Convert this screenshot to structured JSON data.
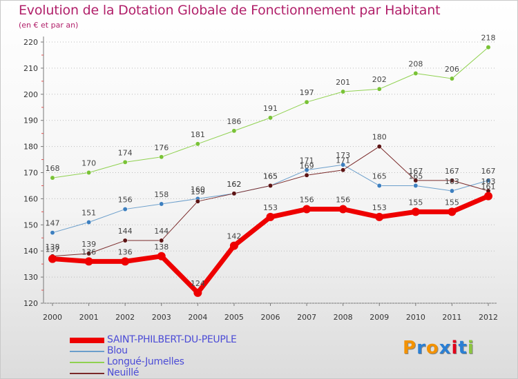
{
  "chart_data": {
    "type": "line",
    "title": "Evolution de la Dotation Globale de Fonctionnement par Habitant",
    "subtitle": "(en € et par an)",
    "xlabel": "",
    "ylabel": "",
    "ylim": [
      120,
      220
    ],
    "yticks": [
      120,
      130,
      140,
      150,
      160,
      170,
      180,
      190,
      200,
      210,
      220
    ],
    "categories": [
      "2000",
      "2001",
      "2002",
      "2003",
      "2004",
      "2005",
      "2006",
      "2007",
      "2008",
      "2009",
      "2010",
      "2011",
      "2012"
    ],
    "grid": "horizontal-dotted",
    "legend_position": "bottom-left",
    "series": [
      {
        "name": "Longué-Jumelles",
        "color": "#8fd14f",
        "marker": "#79c236",
        "width": 1,
        "values": [
          168,
          170,
          174,
          176,
          181,
          186,
          191,
          197,
          201,
          202,
          208,
          206,
          218
        ]
      },
      {
        "name": "Blou",
        "color": "#6a9ecb",
        "marker": "#3d7fbf",
        "width": 1,
        "values": [
          147,
          151,
          156,
          158,
          160,
          162,
          165,
          171,
          173,
          165,
          165,
          163,
          167
        ]
      },
      {
        "name": "Neuillé",
        "color": "#7a2a2a",
        "marker": "#5c1414",
        "width": 1,
        "values": [
          138,
          139,
          144,
          144,
          159,
          162,
          165,
          169,
          171,
          180,
          167,
          167,
          163
        ]
      },
      {
        "name": "SAINT-PHILBERT-DU-PEUPLE",
        "color": "#ee0000",
        "marker": "#ee0000",
        "width": 7,
        "values": [
          137,
          136,
          136,
          138,
          124,
          142,
          153,
          156,
          156,
          153,
          155,
          155,
          161
        ]
      }
    ],
    "legend_order": [
      "SAINT-PHILBERT-DU-PEUPLE",
      "Blou",
      "Longué-Jumelles",
      "Neuillé"
    ]
  },
  "logo": {
    "text": "Proxiti",
    "colors": [
      "#f39200",
      "#2a7fd4",
      "#f39200",
      "#2a7fd4",
      "#e2001a",
      "#2a7fd4",
      "#8cc63f"
    ]
  }
}
